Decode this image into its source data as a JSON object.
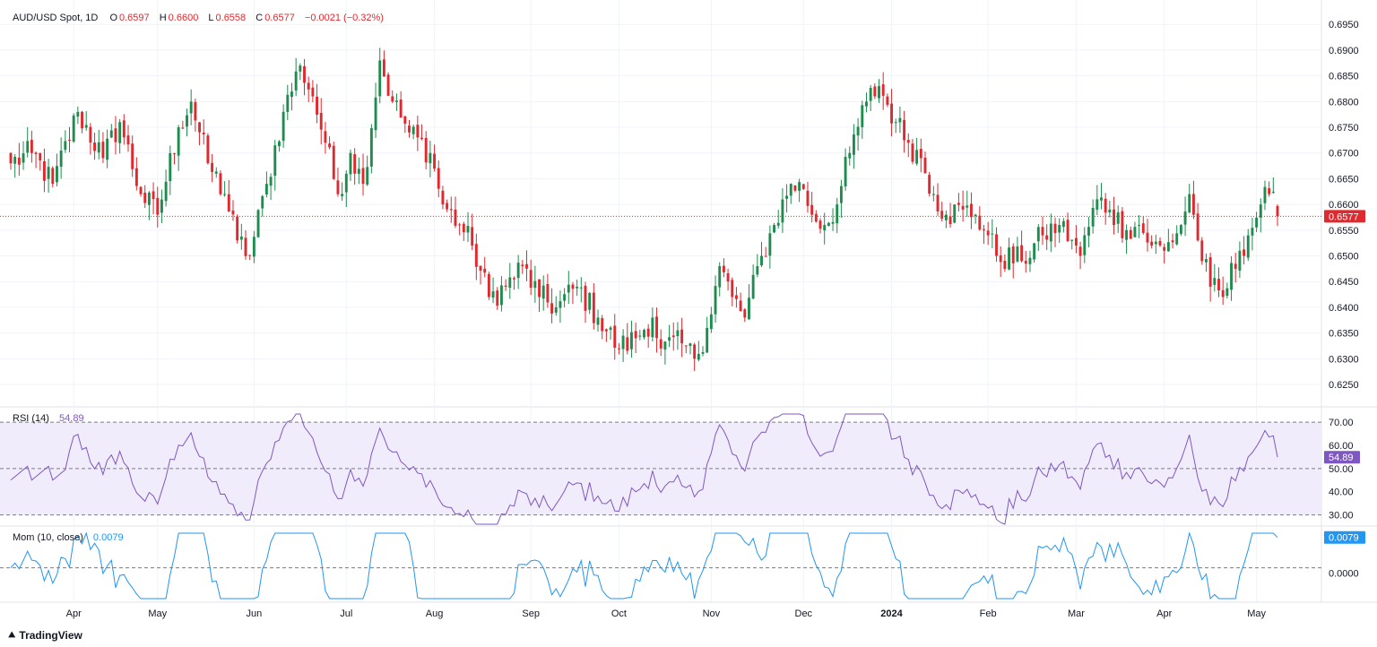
{
  "header": {
    "symbol": "AUD/USD Spot, 1D",
    "o_label": "O",
    "o_value": "0.6597",
    "h_label": "H",
    "h_value": "0.6600",
    "l_label": "L",
    "l_value": "0.6558",
    "c_label": "C",
    "c_value": "0.6577",
    "change": "−0.0021 (−0.32%)"
  },
  "rsi": {
    "label": "RSI (14)",
    "value": "54.89"
  },
  "mom": {
    "label": "Mom (10, close)",
    "value": "0.0079"
  },
  "branding": {
    "logo_text": "TradingView"
  },
  "colors": {
    "up": "#26a69a",
    "up_candle": "#1e8c4e",
    "down": "#e0292e",
    "rsi_line": "#7e57c2",
    "rsi_band": "#f1ecfb",
    "mom_line": "#2196f3",
    "price_tag": "#e0292e"
  },
  "chart_data": [
    {
      "type": "candlestick",
      "title": "AUD/USD Spot, 1D",
      "y_ticks": [
        "0.6950",
        "0.6900",
        "0.6850",
        "0.6800",
        "0.6750",
        "0.6700",
        "0.6650",
        "0.6600",
        "0.6550",
        "0.6500",
        "0.6450",
        "0.6400",
        "0.6350",
        "0.6300",
        "0.6250"
      ],
      "ylim": [
        0.621,
        0.698
      ],
      "last_price": 0.6577,
      "last_price_label": "0.6577",
      "x_labels": [
        {
          "label": "Apr",
          "date": "2023-04-01"
        },
        {
          "label": "May",
          "date": "2023-05-01"
        },
        {
          "label": "Jun",
          "date": "2023-06-01"
        },
        {
          "label": "Jul",
          "date": "2023-07-01"
        },
        {
          "label": "Aug",
          "date": "2023-08-01"
        },
        {
          "label": "Sep",
          "date": "2023-09-01"
        },
        {
          "label": "Oct",
          "date": "2023-10-01"
        },
        {
          "label": "Nov",
          "date": "2023-11-01"
        },
        {
          "label": "Dec",
          "date": "2023-12-01"
        },
        {
          "label": "2024",
          "date": "2024-01-01"
        },
        {
          "label": "Feb",
          "date": "2024-02-01"
        },
        {
          "label": "Mar",
          "date": "2024-03-01"
        },
        {
          "label": "Apr",
          "date": "2024-04-01"
        },
        {
          "label": "May",
          "date": "2024-05-01"
        }
      ],
      "first_date": "2023-03-13",
      "last_date": "2024-05-08",
      "close_path": [
        [
          "2023-03-13",
          0.668
        ],
        [
          "2023-03-20",
          0.67
        ],
        [
          "2023-03-27",
          0.664
        ],
        [
          "2023-04-04",
          0.678
        ],
        [
          "2023-04-12",
          0.669
        ],
        [
          "2023-04-18",
          0.676
        ],
        [
          "2023-04-25",
          0.662
        ],
        [
          "2023-05-01",
          0.658
        ],
        [
          "2023-05-08",
          0.675
        ],
        [
          "2023-05-11",
          0.68
        ],
        [
          "2023-05-17",
          0.668
        ],
        [
          "2023-05-23",
          0.662
        ],
        [
          "2023-05-26",
          0.653
        ],
        [
          "2023-05-31",
          0.65
        ],
        [
          "2023-06-06",
          0.664
        ],
        [
          "2023-06-12",
          0.678
        ],
        [
          "2023-06-16",
          0.687
        ],
        [
          "2023-06-21",
          0.681
        ],
        [
          "2023-06-26",
          0.672
        ],
        [
          "2023-06-29",
          0.662
        ],
        [
          "2023-07-04",
          0.67
        ],
        [
          "2023-07-07",
          0.664
        ],
        [
          "2023-07-13",
          0.688
        ],
        [
          "2023-07-18",
          0.68
        ],
        [
          "2023-07-24",
          0.674
        ],
        [
          "2023-07-31",
          0.67
        ],
        [
          "2023-08-03",
          0.66
        ],
        [
          "2023-08-09",
          0.656
        ],
        [
          "2023-08-14",
          0.652
        ],
        [
          "2023-08-18",
          0.642
        ],
        [
          "2023-08-24",
          0.644
        ],
        [
          "2023-08-30",
          0.648
        ],
        [
          "2023-09-05",
          0.642
        ],
        [
          "2023-09-11",
          0.64
        ],
        [
          "2023-09-18",
          0.644
        ],
        [
          "2023-09-25",
          0.638
        ],
        [
          "2023-10-02",
          0.632
        ],
        [
          "2023-10-06",
          0.634
        ],
        [
          "2023-10-12",
          0.638
        ],
        [
          "2023-10-16",
          0.632
        ],
        [
          "2023-10-23",
          0.633
        ],
        [
          "2023-10-26",
          0.63
        ],
        [
          "2023-10-31",
          0.636
        ],
        [
          "2023-11-03",
          0.648
        ],
        [
          "2023-11-08",
          0.642
        ],
        [
          "2023-11-13",
          0.638
        ],
        [
          "2023-11-17",
          0.65
        ],
        [
          "2023-11-22",
          0.656
        ],
        [
          "2023-11-28",
          0.664
        ],
        [
          "2023-12-01",
          0.663
        ],
        [
          "2023-12-05",
          0.658
        ],
        [
          "2023-12-08",
          0.656
        ],
        [
          "2023-12-13",
          0.66
        ],
        [
          "2023-12-18",
          0.67
        ],
        [
          "2023-12-22",
          0.68
        ],
        [
          "2023-12-27",
          0.683
        ],
        [
          "2024-01-02",
          0.676
        ],
        [
          "2024-01-05",
          0.672
        ],
        [
          "2024-01-10",
          0.669
        ],
        [
          "2024-01-15",
          0.662
        ],
        [
          "2024-01-18",
          0.658
        ],
        [
          "2024-01-24",
          0.659
        ],
        [
          "2024-01-29",
          0.658
        ],
        [
          "2024-02-01",
          0.654
        ],
        [
          "2024-02-05",
          0.65
        ],
        [
          "2024-02-13",
          0.649
        ],
        [
          "2024-02-20",
          0.654
        ],
        [
          "2024-02-26",
          0.656
        ],
        [
          "2024-03-01",
          0.652
        ],
        [
          "2024-03-04",
          0.65
        ],
        [
          "2024-03-08",
          0.661
        ],
        [
          "2024-03-13",
          0.659
        ],
        [
          "2024-03-19",
          0.655
        ],
        [
          "2024-03-22",
          0.656
        ],
        [
          "2024-03-27",
          0.652
        ],
        [
          "2024-04-01",
          0.651
        ],
        [
          "2024-04-05",
          0.656
        ],
        [
          "2024-04-09",
          0.662
        ],
        [
          "2024-04-11",
          0.653
        ],
        [
          "2024-04-16",
          0.644
        ],
        [
          "2024-04-19",
          0.642
        ],
        [
          "2024-04-25",
          0.651
        ],
        [
          "2024-04-29",
          0.654
        ],
        [
          "2024-05-02",
          0.66
        ],
        [
          "2024-05-06",
          0.662
        ],
        [
          "2024-05-08",
          0.6577
        ]
      ]
    },
    {
      "type": "line",
      "title": "RSI (14)",
      "y_ticks": [
        "70.00",
        "60.00",
        "50.00",
        "40.00",
        "30.00"
      ],
      "ylim": [
        26.0,
        73.5
      ],
      "band": [
        30,
        70
      ],
      "levels": [
        30,
        50,
        70
      ],
      "last_value": 54.89,
      "last_value_label": "54.89",
      "note": "series derived from the candlestick closes"
    },
    {
      "type": "line",
      "title": "Mom (10, close)",
      "y_ticks": [
        "0.0000"
      ],
      "ylim": [
        -0.008,
        0.009
      ],
      "levels": [
        0
      ],
      "last_value": 0.0079,
      "last_value_label": "0.0079",
      "note": "series derived from the candlestick closes"
    }
  ]
}
